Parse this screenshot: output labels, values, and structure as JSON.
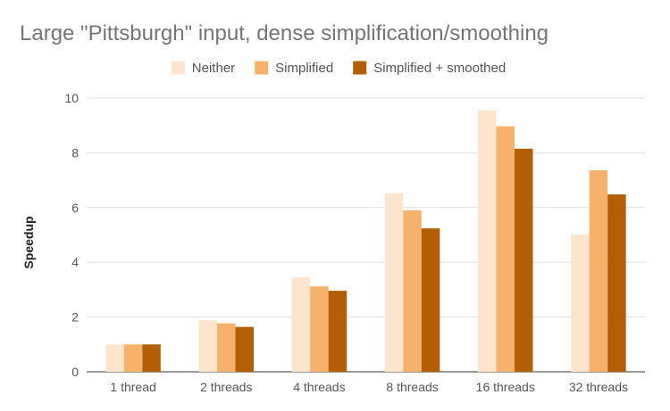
{
  "chart_data": {
    "type": "bar",
    "title": "Large \"Pittsburgh\" input, dense simplification/smoothing",
    "xlabel": "",
    "ylabel": "Speedup",
    "ylim": [
      0,
      10
    ],
    "yticks": [
      0,
      2,
      4,
      6,
      8,
      10
    ],
    "grid": true,
    "legend_position": "top",
    "categories": [
      "1 thread",
      "2 threads",
      "4 threads",
      "8 threads",
      "16 threads",
      "32 threads"
    ],
    "series": [
      {
        "name": "Neither",
        "color": "#fce5cd",
        "values": [
          1.0,
          1.88,
          3.45,
          6.52,
          9.55,
          5.02
        ]
      },
      {
        "name": "Simplified",
        "color": "#f6b26b",
        "values": [
          1.0,
          1.77,
          3.12,
          5.9,
          8.97,
          7.36
        ]
      },
      {
        "name": "Simplified + smoothed",
        "color": "#b45f06",
        "values": [
          1.0,
          1.64,
          2.96,
          5.24,
          8.15,
          6.48
        ]
      }
    ]
  }
}
